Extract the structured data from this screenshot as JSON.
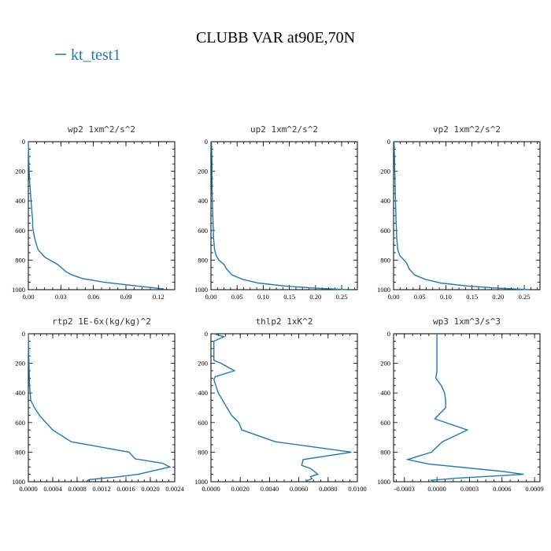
{
  "figure": {
    "title": "CLUBB VAR at90E,70N",
    "legend": [
      {
        "name": "kt_test1",
        "color": "#1f77b4"
      }
    ]
  },
  "chart_data": [
    {
      "type": "line",
      "title": "wp2  1xm^2/s^2",
      "ylim": [
        1000,
        0
      ],
      "xlim": [
        0,
        0.135
      ],
      "yticks": [
        "0",
        "200",
        "400",
        "600",
        "800",
        "1000"
      ],
      "xticks": [
        "0.00",
        "0.03",
        "0.06",
        "0.09",
        "0.12"
      ],
      "series": [
        {
          "color": "#1f77b4",
          "x": [
            0,
            0.0005,
            0.001,
            0.002,
            0.003,
            0.004,
            0.004,
            0.005,
            0.006,
            0.009,
            0.015,
            0.027,
            0.035,
            0.04,
            0.05,
            0.07,
            0.1,
            0.125
          ],
          "y": [
            0,
            150,
            250,
            350,
            450,
            530,
            580,
            620,
            660,
            730,
            780,
            830,
            880,
            900,
            925,
            950,
            975,
            995
          ]
        }
      ]
    },
    {
      "type": "line",
      "title": "up2  1xm^2/s^2",
      "ylim": [
        1000,
        0
      ],
      "xlim": [
        0,
        0.28
      ],
      "yticks": [
        "0",
        "200",
        "400",
        "600",
        "800",
        "1000"
      ],
      "xticks": [
        "0.00",
        "0.05",
        "0.10",
        "0.15",
        "0.20",
        "0.25"
      ],
      "series": [
        {
          "color": "#1f77b4",
          "x": [
            0.001,
            0.002,
            0.002,
            0.003,
            0.004,
            0.005,
            0.007,
            0.01,
            0.015,
            0.025,
            0.03,
            0.04,
            0.06,
            0.09,
            0.14,
            0.2,
            0.26
          ],
          "y": [
            0,
            150,
            300,
            450,
            550,
            650,
            730,
            770,
            800,
            830,
            860,
            900,
            930,
            955,
            975,
            990,
            1000
          ]
        }
      ]
    },
    {
      "type": "line",
      "title": "vp2  1xm^2/s^2",
      "ylim": [
        1000,
        0
      ],
      "xlim": [
        0,
        0.28
      ],
      "yticks": [
        "0",
        "200",
        "400",
        "600",
        "800",
        "1000"
      ],
      "xticks": [
        "0.00",
        "0.05",
        "0.10",
        "0.15",
        "0.20",
        "0.25"
      ],
      "series": [
        {
          "color": "#1f77b4",
          "x": [
            0.001,
            0.002,
            0.003,
            0.004,
            0.005,
            0.006,
            0.008,
            0.012,
            0.02,
            0.025,
            0.03,
            0.04,
            0.06,
            0.09,
            0.14,
            0.2,
            0.26
          ],
          "y": [
            0,
            150,
            300,
            450,
            550,
            650,
            730,
            770,
            800,
            820,
            860,
            900,
            930,
            955,
            975,
            990,
            1000
          ]
        }
      ]
    },
    {
      "type": "line",
      "title": "rtp2  1E-6x(kg/kg)^2",
      "ylim": [
        1000,
        0
      ],
      "xlim": [
        0,
        0.0024
      ],
      "yticks": [
        "0",
        "200",
        "400",
        "600",
        "800",
        "1000"
      ],
      "xticks": [
        "0.0000",
        "0.0004",
        "0.0008",
        "0.0012",
        "0.0016",
        "0.0020",
        "0.0024"
      ],
      "series": [
        {
          "color": "#1f77b4",
          "x": [
            0,
            1e-05,
            2e-05,
            4e-05,
            0.0001,
            0.0002,
            0.0004,
            0.0007,
            0.00165,
            0.00175,
            0.0022,
            0.00232,
            0.0018,
            0.0014,
            0.001,
            0.00095
          ],
          "y": [
            0,
            200,
            350,
            450,
            500,
            560,
            650,
            730,
            800,
            845,
            875,
            900,
            950,
            970,
            985,
            998
          ]
        }
      ]
    },
    {
      "type": "line",
      "title": "thlp2  1xK^2",
      "ylim": [
        1000,
        0
      ],
      "xlim": [
        0,
        0.01
      ],
      "yticks": [
        "0",
        "200",
        "400",
        "600",
        "800",
        "1000"
      ],
      "xticks": [
        "0.0000",
        "0.0020",
        "0.0040",
        "0.0060",
        "0.0080",
        "0.0100"
      ],
      "series": [
        {
          "color": "#1f77b4",
          "x": [
            0.0002,
            0.0009,
            0.0002,
            0.0002,
            0.0007,
            0.0016,
            0.0003,
            0.0002,
            0.0005,
            0.0014,
            0.0019,
            0.0021,
            0.0044,
            0.0096,
            0.0063,
            0.0062,
            0.0068,
            0.0073,
            0.0068,
            0.0069,
            0.0065
          ],
          "y": [
            0,
            20,
            50,
            180,
            200,
            250,
            290,
            310,
            400,
            550,
            600,
            650,
            730,
            800,
            850,
            890,
            910,
            950,
            965,
            980,
            995
          ]
        }
      ]
    },
    {
      "type": "line",
      "title": "wp3  1xm^3/s^3",
      "ylim": [
        1000,
        0
      ],
      "xlim": [
        -0.0004,
        0.00095
      ],
      "yticks": [
        "0",
        "200",
        "400",
        "600",
        "800",
        "1000"
      ],
      "xticks": [
        "-0.0003",
        "0.0000",
        "0.0003",
        "0.0006",
        "0.0009"
      ],
      "series": [
        {
          "color": "#1f77b4",
          "x": [
            0,
            0,
            0,
            0,
            -1e-05,
            4e-05,
            7e-05,
            8e-05,
            8e-05,
            -2e-05,
            0.00028,
            5e-05,
            -5e-05,
            -0.00027,
            -8e-05,
            0.0006,
            0.0008,
            0.0002,
            -5e-05,
            -3e-05
          ],
          "y": [
            0,
            100,
            200,
            250,
            300,
            350,
            400,
            450,
            500,
            575,
            650,
            730,
            800,
            850,
            880,
            930,
            950,
            975,
            990,
            998
          ]
        }
      ]
    }
  ]
}
